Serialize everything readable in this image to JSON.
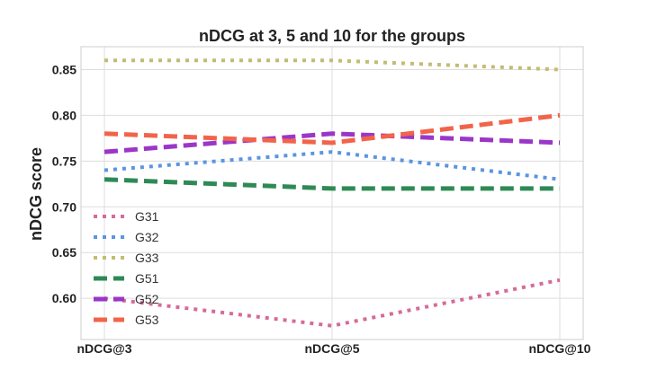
{
  "chart_data": {
    "type": "line",
    "title": "nDCG at 3, 5 and 10 for the groups",
    "xlabel": "",
    "ylabel": "nDCG score",
    "categories": [
      "nDCG@3",
      "nDCG@5",
      "nDCG@10"
    ],
    "ylim": [
      0.555,
      0.875
    ],
    "yticks": [
      0.6,
      0.65,
      0.7,
      0.75,
      0.8,
      0.85
    ],
    "ytick_labels": [
      "0.60",
      "0.65",
      "0.70",
      "0.75",
      "0.80",
      "0.85"
    ],
    "grid": true,
    "legend_position": "center-left",
    "series": [
      {
        "name": "G31",
        "values": [
          0.6,
          0.57,
          0.62
        ],
        "color": "#d66b98",
        "style": "dotted"
      },
      {
        "name": "G32",
        "values": [
          0.74,
          0.76,
          0.73
        ],
        "color": "#5b95e0",
        "style": "dotted"
      },
      {
        "name": "G33",
        "values": [
          0.86,
          0.86,
          0.85
        ],
        "color": "#c3bc73",
        "style": "dotted"
      },
      {
        "name": "G51",
        "values": [
          0.73,
          0.72,
          0.72
        ],
        "color": "#2e8a55",
        "style": "dashed"
      },
      {
        "name": "G52",
        "values": [
          0.76,
          0.78,
          0.77
        ],
        "color": "#9b36c9",
        "style": "dashed"
      },
      {
        "name": "G53",
        "values": [
          0.78,
          0.77,
          0.8
        ],
        "color": "#f2644a",
        "style": "dashed"
      }
    ]
  }
}
